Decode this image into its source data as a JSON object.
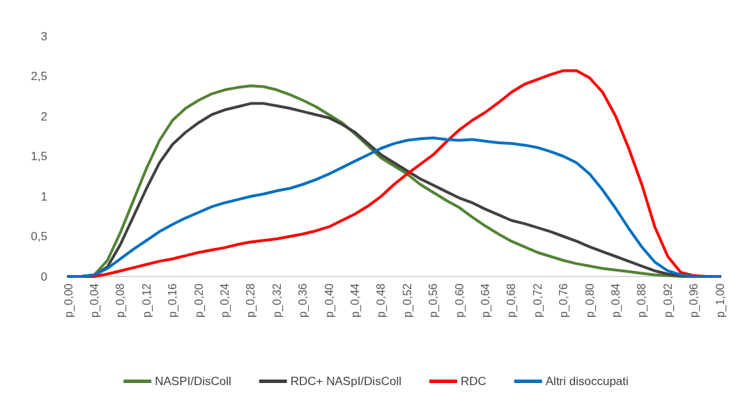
{
  "chart_data": {
    "type": "line",
    "categories": [
      "p_0,00",
      null,
      "p_0,04",
      null,
      "p_0,08",
      null,
      "p_0,12",
      null,
      "p_0,16",
      null,
      "p_0,20",
      null,
      "p_0,24",
      null,
      "p_0,28",
      null,
      "p_0,32",
      null,
      "p_0,36",
      null,
      "p_0,40",
      null,
      "p_0,44",
      null,
      "p_0,48",
      null,
      "p_0,52",
      null,
      "p_0,56",
      null,
      "p_0,60",
      null,
      "p_0,64",
      null,
      "p_0,68",
      null,
      "p_0,72",
      null,
      "p_0,76",
      null,
      "p_0,80",
      null,
      "p_0,84",
      null,
      "p_0,88",
      null,
      "p_0,92",
      null,
      "p_0,96",
      null,
      "p_1,00"
    ],
    "series": [
      {
        "name": "NASPI/DisColl",
        "color": "#548235",
        "values": [
          0,
          0,
          0.02,
          0.2,
          0.55,
          0.95,
          1.35,
          1.7,
          1.95,
          2.1,
          2.2,
          2.28,
          2.33,
          2.36,
          2.38,
          2.37,
          2.33,
          2.27,
          2.2,
          2.12,
          2.02,
          1.92,
          1.78,
          1.63,
          1.48,
          1.38,
          1.28,
          1.15,
          1.05,
          0.95,
          0.86,
          0.74,
          0.63,
          0.53,
          0.44,
          0.37,
          0.3,
          0.25,
          0.2,
          0.16,
          0.13,
          0.1,
          0.08,
          0.06,
          0.04,
          0.02,
          0.01,
          0,
          0,
          0,
          0
        ]
      },
      {
        "name": "RDC+ NASpI/DisColl",
        "color": "#404040",
        "values": [
          0,
          0,
          0.01,
          0.12,
          0.4,
          0.75,
          1.1,
          1.42,
          1.65,
          1.8,
          1.92,
          2.02,
          2.08,
          2.12,
          2.16,
          2.16,
          2.13,
          2.1,
          2.06,
          2.02,
          1.98,
          1.9,
          1.8,
          1.66,
          1.52,
          1.42,
          1.32,
          1.22,
          1.14,
          1.06,
          0.98,
          0.92,
          0.84,
          0.77,
          0.7,
          0.66,
          0.61,
          0.56,
          0.5,
          0.44,
          0.37,
          0.31,
          0.25,
          0.19,
          0.13,
          0.07,
          0.03,
          0.01,
          0,
          0,
          0
        ]
      },
      {
        "name": "RDC",
        "color": "#ff0000",
        "values": [
          0,
          0,
          0,
          0.03,
          0.07,
          0.11,
          0.15,
          0.19,
          0.22,
          0.26,
          0.3,
          0.33,
          0.36,
          0.4,
          0.43,
          0.45,
          0.47,
          0.5,
          0.53,
          0.57,
          0.62,
          0.7,
          0.78,
          0.88,
          1.0,
          1.15,
          1.28,
          1.4,
          1.52,
          1.68,
          1.83,
          1.95,
          2.05,
          2.17,
          2.3,
          2.4,
          2.46,
          2.52,
          2.57,
          2.57,
          2.48,
          2.3,
          2.0,
          1.6,
          1.15,
          0.62,
          0.25,
          0.05,
          0.01,
          0,
          0
        ]
      },
      {
        "name": "Altri disoccupati",
        "color": "#0070c0",
        "values": [
          0,
          0,
          0.02,
          0.1,
          0.22,
          0.34,
          0.45,
          0.56,
          0.65,
          0.73,
          0.8,
          0.87,
          0.92,
          0.96,
          1.0,
          1.03,
          1.07,
          1.1,
          1.15,
          1.21,
          1.28,
          1.36,
          1.44,
          1.52,
          1.6,
          1.66,
          1.7,
          1.72,
          1.73,
          1.71,
          1.7,
          1.71,
          1.69,
          1.67,
          1.66,
          1.64,
          1.61,
          1.56,
          1.5,
          1.42,
          1.28,
          1.08,
          0.85,
          0.6,
          0.37,
          0.18,
          0.07,
          0.02,
          0,
          0,
          0
        ]
      }
    ],
    "ylim": [
      0,
      3
    ],
    "yticks": [
      0,
      {
        "value": 0.5,
        "label": "0,5"
      },
      1,
      {
        "value": 1.5,
        "label": "1,5"
      },
      2,
      {
        "value": 2.5,
        "label": "2,5"
      },
      3
    ],
    "grid": false,
    "legend": "bottom",
    "marker": "none",
    "line_style": "solid"
  }
}
